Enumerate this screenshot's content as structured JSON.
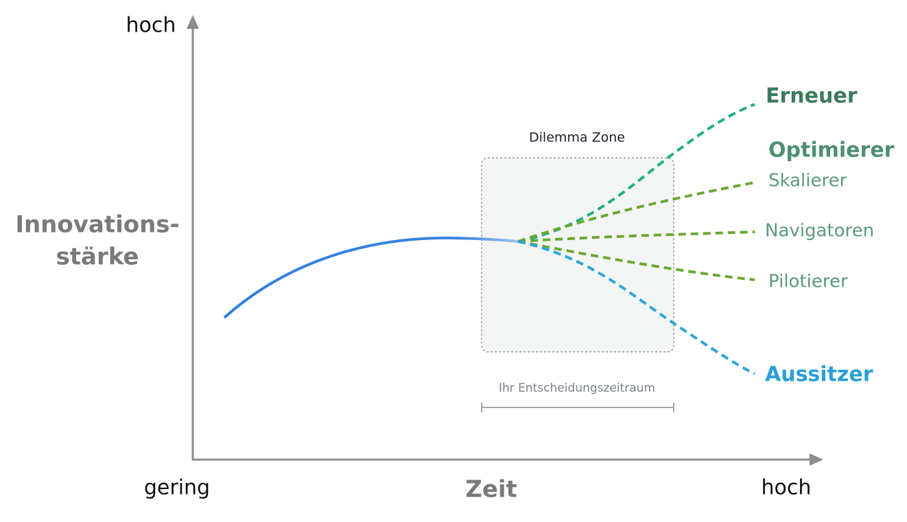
{
  "y_axis": {
    "top_label": "hoch",
    "title": [
      "Innovations-",
      "stärke"
    ]
  },
  "x_axis": {
    "start_label": "gering",
    "title": "Zeit",
    "end_label": "hoch"
  },
  "zone": {
    "title": "Dilemma Zone",
    "caption": "Ihr Entscheidungszeitraum"
  },
  "paths": [
    {
      "label": "Erneuer"
    },
    {
      "label": "Optimierer"
    },
    {
      "label": "Skalierer"
    },
    {
      "label": "Navigatoren"
    },
    {
      "label": "Pilotierer"
    },
    {
      "label": "Aussitzer"
    }
  ]
}
